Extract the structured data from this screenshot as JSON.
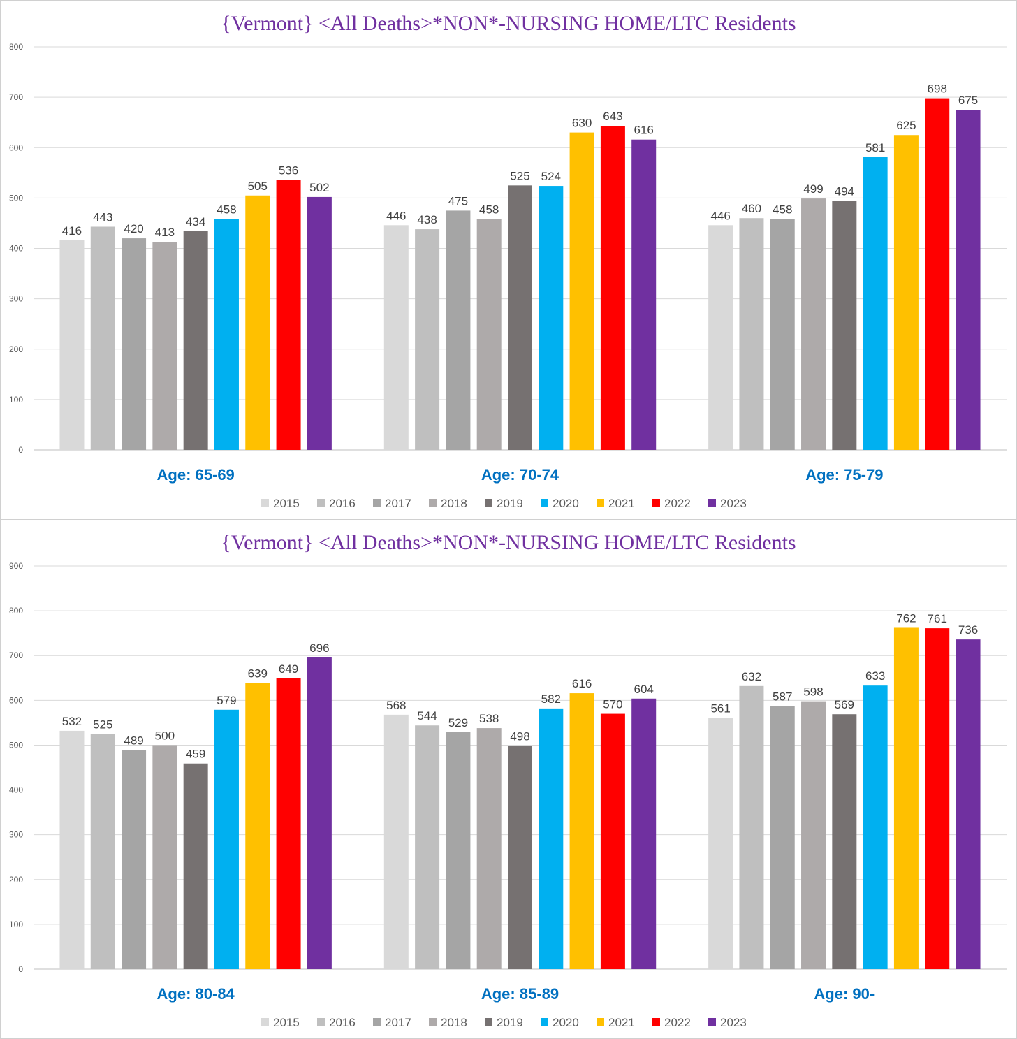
{
  "chart_data": [
    {
      "type": "bar",
      "title": "{Vermont}  <All Deaths>*NON*-NURSING HOME/LTC Residents",
      "categories": [
        "Age: 65-69",
        "Age: 70-74",
        "Age: 75-79"
      ],
      "ylim": [
        0,
        800
      ],
      "yticks": [
        0,
        100,
        200,
        300,
        400,
        500,
        600,
        700,
        800
      ],
      "grid": true,
      "legend_position": "bottom",
      "series": [
        {
          "name": "2015",
          "color": "#D9D9D9",
          "values": [
            416,
            446,
            446
          ]
        },
        {
          "name": "2016",
          "color": "#BFBFBF",
          "values": [
            443,
            438,
            460
          ]
        },
        {
          "name": "2017",
          "color": "#A5A5A5",
          "values": [
            420,
            475,
            458
          ]
        },
        {
          "name": "2018",
          "color": "#AEAAAA",
          "values": [
            413,
            458,
            499
          ]
        },
        {
          "name": "2019",
          "color": "#767171",
          "values": [
            434,
            525,
            494
          ]
        },
        {
          "name": "2020",
          "color": "#00B0F0",
          "values": [
            458,
            524,
            581
          ]
        },
        {
          "name": "2021",
          "color": "#FFC000",
          "values": [
            505,
            630,
            625
          ]
        },
        {
          "name": "2022",
          "color": "#FF0000",
          "values": [
            536,
            643,
            698
          ]
        },
        {
          "name": "2023",
          "color": "#7030A0",
          "values": [
            502,
            616,
            675
          ]
        }
      ]
    },
    {
      "type": "bar",
      "title": "{Vermont}  <All Deaths>*NON*-NURSING HOME/LTC Residents",
      "categories": [
        "Age: 80-84",
        "Age: 85-89",
        "Age: 90-"
      ],
      "ylim": [
        0,
        900
      ],
      "yticks": [
        0,
        100,
        200,
        300,
        400,
        500,
        600,
        700,
        800,
        900
      ],
      "grid": true,
      "legend_position": "bottom",
      "series": [
        {
          "name": "2015",
          "color": "#D9D9D9",
          "values": [
            532,
            568,
            561
          ]
        },
        {
          "name": "2016",
          "color": "#BFBFBF",
          "values": [
            525,
            544,
            632
          ]
        },
        {
          "name": "2017",
          "color": "#A5A5A5",
          "values": [
            489,
            529,
            587
          ]
        },
        {
          "name": "2018",
          "color": "#AEAAAA",
          "values": [
            500,
            538,
            598
          ]
        },
        {
          "name": "2019",
          "color": "#767171",
          "values": [
            459,
            498,
            569
          ]
        },
        {
          "name": "2020",
          "color": "#00B0F0",
          "values": [
            579,
            582,
            633
          ]
        },
        {
          "name": "2021",
          "color": "#FFC000",
          "values": [
            639,
            616,
            762
          ]
        },
        {
          "name": "2022",
          "color": "#FF0000",
          "values": [
            649,
            570,
            761
          ]
        },
        {
          "name": "2023",
          "color": "#7030A0",
          "values": [
            696,
            604,
            736
          ]
        }
      ]
    }
  ],
  "colors": {
    "title": "#7030A0",
    "category_label": "#0070C0",
    "grid": "#D9D9D9",
    "text": "#595959"
  }
}
